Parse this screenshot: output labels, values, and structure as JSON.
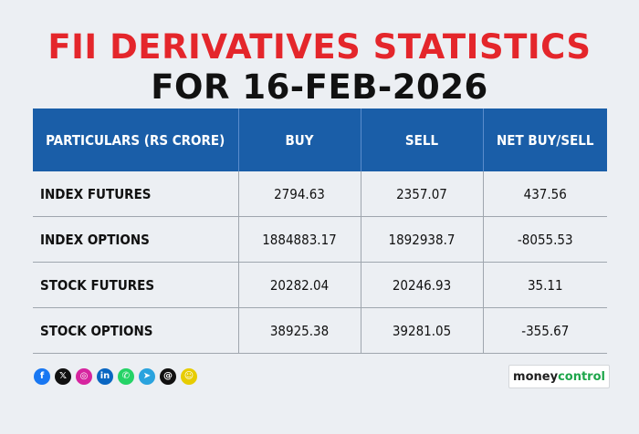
{
  "title": {
    "line1": "FII DERIVATIVES STATISTICS",
    "line2": "FOR 16-FEB-2026"
  },
  "table": {
    "headers": [
      "PARTICULARS (RS CRORE)",
      "BUY",
      "SELL",
      "NET BUY/SELL"
    ],
    "rows": [
      [
        "INDEX FUTURES",
        "2794.63",
        "2357.07",
        "437.56"
      ],
      [
        "INDEX OPTIONS",
        "1884883.17",
        "1892938.7",
        "-8055.53"
      ],
      [
        "STOCK FUTURES",
        "20282.04",
        "20246.93",
        "35.11"
      ],
      [
        "STOCK OPTIONS",
        "38925.38",
        "39281.05",
        "-355.67"
      ]
    ]
  },
  "social_icons": [
    {
      "name": "facebook-icon",
      "glyph": "f",
      "color": "#1877f2"
    },
    {
      "name": "x-icon",
      "glyph": "𝕏",
      "color": "#111111"
    },
    {
      "name": "instagram-icon",
      "glyph": "◎",
      "color": "#d6249f"
    },
    {
      "name": "linkedin-icon",
      "glyph": "in",
      "color": "#0a66c2"
    },
    {
      "name": "whatsapp-icon",
      "glyph": "✆",
      "color": "#25d366"
    },
    {
      "name": "telegram-icon",
      "glyph": "➤",
      "color": "#2aa3de"
    },
    {
      "name": "threads-icon",
      "glyph": "@",
      "color": "#111111"
    },
    {
      "name": "snapchat-icon",
      "glyph": "☺",
      "color": "#e7cc00"
    }
  ],
  "brand": {
    "part1": "money",
    "part2": "control"
  },
  "colors": {
    "title_red": "#e4262b",
    "header_blue": "#1a5ea8",
    "background": "#eceff3",
    "brand_green": "#1ea64b"
  }
}
